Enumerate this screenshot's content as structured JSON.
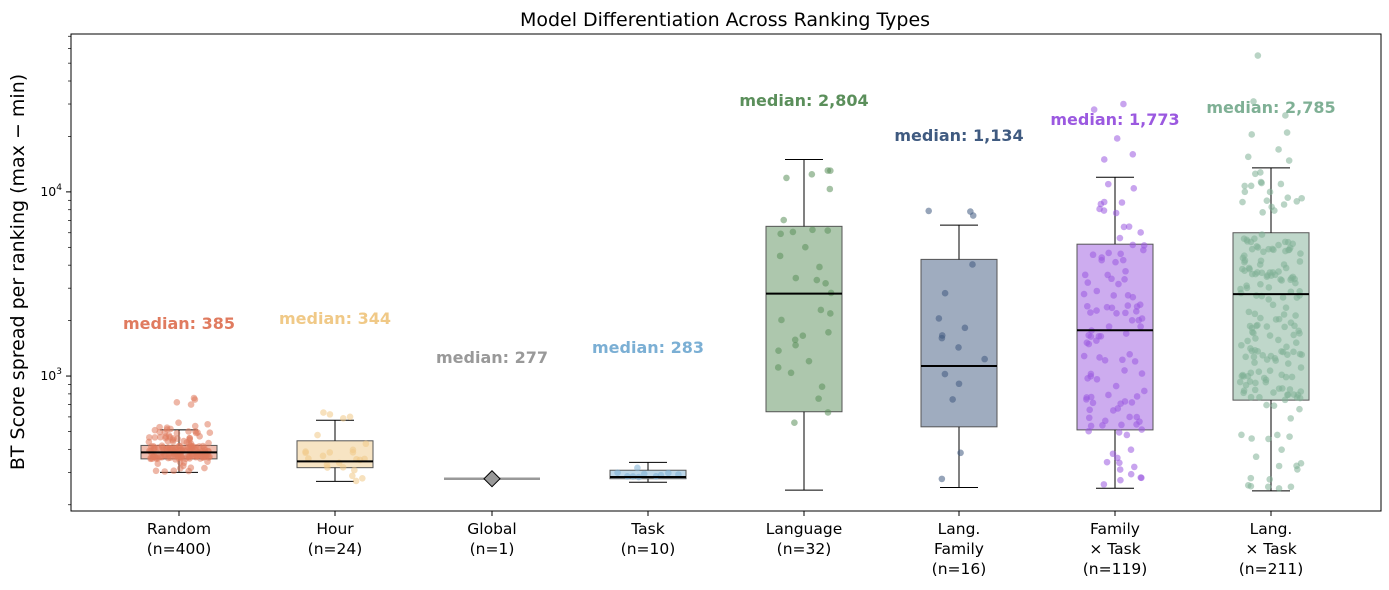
{
  "chart_data": {
    "type": "box",
    "title": "Model Differentiation Across Ranking Types",
    "xlabel": "",
    "ylabel": "BT Score spread per ranking (max − min)",
    "yscale": "log",
    "ylim": [
      185,
      72000
    ],
    "yticks": [
      {
        "value": 1000,
        "base": "10",
        "exp": "3"
      },
      {
        "value": 10000,
        "base": "10",
        "exp": "4"
      }
    ],
    "grid": false,
    "median_label_prefix": "median: ",
    "categories": [
      {
        "lines": [
          "Random",
          "(n=400)"
        ],
        "color": "#e07b5f",
        "median_text": "385",
        "n": 400,
        "box": {
          "q1": 355,
          "median": 385,
          "q3": 420,
          "whisker_low": 300,
          "whisker_high": 510
        },
        "points": {
          "count": 160,
          "min": 300,
          "max": 560,
          "outliers": [
            760,
            745,
            720,
            700
          ]
        }
      },
      {
        "lines": [
          "Hour",
          "(n=24)"
        ],
        "color": "#f0c987",
        "median_text": "344",
        "n": 24,
        "box": {
          "q1": 318,
          "median": 344,
          "q3": 445,
          "whisker_low": 268,
          "whisker_high": 575
        },
        "points": {
          "count": 24,
          "min": 268,
          "max": 690,
          "outliers": []
        }
      },
      {
        "lines": [
          "Global",
          "(n=1)"
        ],
        "color": "#999999",
        "median_text": "277",
        "n": 1,
        "single_value": 277
      },
      {
        "lines": [
          "Task",
          "(n=10)"
        ],
        "color": "#7bafd4",
        "median_text": "283",
        "n": 10,
        "box": {
          "q1": 277,
          "median": 283,
          "q3": 308,
          "whisker_low": 265,
          "whisker_high": 340
        },
        "points": {
          "count": 10,
          "min": 265,
          "max": 340,
          "outliers": []
        }
      },
      {
        "lines": [
          "Language",
          "(n=32)"
        ],
        "color": "#5b8f5b",
        "median_text": "2,804",
        "n": 32,
        "box": {
          "q1": 640,
          "median": 2804,
          "q3": 6500,
          "whisker_low": 240,
          "whisker_high": 15000
        },
        "points": {
          "count": 32,
          "min": 240,
          "max": 15000,
          "outliers": []
        }
      },
      {
        "lines": [
          "Lang.",
          "Family",
          "(n=16)"
        ],
        "color": "#3f5a80",
        "median_text": "1,134",
        "n": 16,
        "box": {
          "q1": 530,
          "median": 1134,
          "q3": 4300,
          "whisker_low": 248,
          "whisker_high": 6600
        },
        "points": {
          "count": 16,
          "min": 250,
          "max": 12000,
          "outliers": []
        }
      },
      {
        "lines": [
          "Family",
          "× Task",
          "(n=119)"
        ],
        "color": "#9b59e0",
        "median_text": "1,773",
        "n": 119,
        "box": {
          "q1": 510,
          "median": 1773,
          "q3": 5200,
          "whisker_low": 246,
          "whisker_high": 12000
        },
        "points": {
          "count": 110,
          "min": 246,
          "max": 12000,
          "outliers": [
            30000,
            28000,
            19500,
            16000,
            15000
          ]
        }
      },
      {
        "lines": [
          "Lang.",
          "× Task",
          "(n=211)"
        ],
        "color": "#7fb095",
        "median_text": "2,785",
        "n": 211,
        "box": {
          "q1": 740,
          "median": 2785,
          "q3": 6000,
          "whisker_low": 238,
          "whisker_high": 13500
        },
        "points": {
          "count": 190,
          "min": 238,
          "max": 13500,
          "outliers": [
            55000,
            31000,
            26000,
            21000,
            20500,
            17000,
            15500,
            14800
          ]
        }
      }
    ]
  }
}
